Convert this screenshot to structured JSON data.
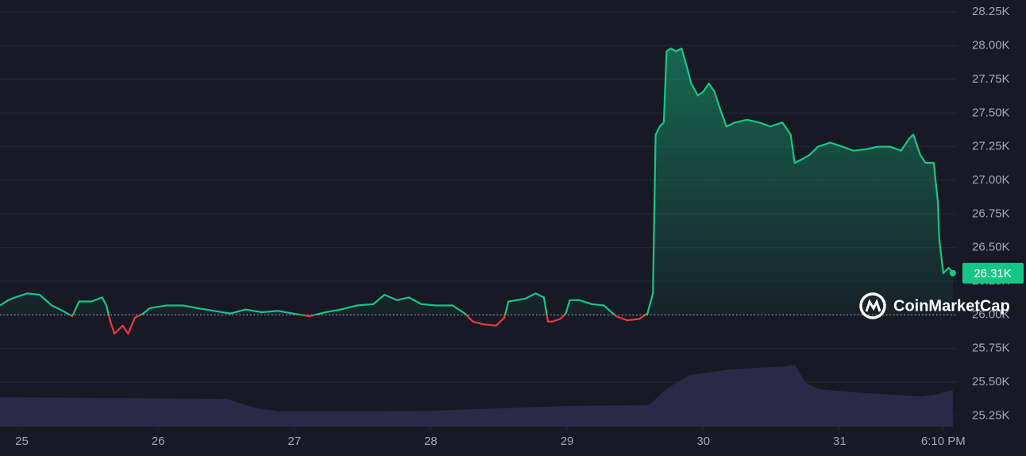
{
  "chart_data": {
    "type": "line",
    "x": [
      24.84,
      24.9,
      24.95,
      25.04,
      25.13,
      25.22,
      25.3,
      25.37,
      25.42,
      25.51,
      25.59,
      25.62,
      25.65,
      25.68,
      25.74,
      25.78,
      25.83,
      25.89,
      25.94,
      26.06,
      26.18,
      26.29,
      26.41,
      26.53,
      26.64,
      26.76,
      26.88,
      26.99,
      27.11,
      27.23,
      27.34,
      27.46,
      27.58,
      27.66,
      27.75,
      27.84,
      27.93,
      28.04,
      28.16,
      28.25,
      28.31,
      28.39,
      28.48,
      28.54,
      28.57,
      28.69,
      28.77,
      28.83,
      28.86,
      28.89,
      28.95,
      28.99,
      29.02,
      29.09,
      29.18,
      29.27,
      29.36,
      29.44,
      29.53,
      29.59,
      29.63,
      29.65,
      29.68,
      29.71,
      29.73,
      29.76,
      29.8,
      29.84,
      29.88,
      29.91,
      29.96,
      30.0,
      30.04,
      30.08,
      30.13,
      30.17,
      30.23,
      30.32,
      30.41,
      30.49,
      30.58,
      30.64,
      30.67,
      30.73,
      30.78,
      30.84,
      30.93,
      31.02,
      31.1,
      31.19,
      31.28,
      31.37,
      31.45,
      31.51,
      31.54,
      31.59,
      31.63,
      31.69,
      31.72,
      31.73,
      31.76,
      31.8,
      31.83
    ],
    "series": [
      {
        "color": "#16c784",
        "down_color": "#ea3943",
        "values": [
          26.07,
          26.11,
          26.13,
          26.16,
          26.15,
          26.07,
          26.03,
          25.99,
          26.1,
          26.1,
          26.13,
          26.07,
          25.95,
          25.86,
          25.92,
          25.86,
          25.98,
          26.01,
          26.05,
          26.07,
          26.07,
          26.05,
          26.03,
          26.01,
          26.04,
          26.02,
          26.03,
          26.01,
          25.99,
          26.02,
          26.04,
          26.07,
          26.08,
          26.15,
          26.11,
          26.13,
          26.08,
          26.07,
          26.07,
          26.01,
          25.95,
          25.93,
          25.92,
          25.98,
          26.1,
          26.12,
          26.16,
          26.13,
          25.95,
          25.95,
          25.97,
          26.01,
          26.11,
          26.11,
          26.08,
          26.07,
          25.99,
          25.96,
          25.97,
          26.01,
          26.16,
          27.34,
          27.4,
          27.43,
          27.96,
          27.98,
          27.96,
          27.98,
          27.84,
          27.72,
          27.63,
          27.66,
          27.72,
          27.66,
          27.51,
          27.4,
          27.43,
          27.45,
          27.43,
          27.4,
          27.43,
          27.34,
          27.13,
          27.16,
          27.19,
          27.25,
          27.28,
          27.25,
          27.22,
          27.23,
          27.25,
          27.25,
          27.22,
          27.31,
          27.34,
          27.19,
          27.13,
          27.13,
          26.84,
          26.57,
          26.31,
          26.35,
          26.31
        ]
      }
    ],
    "baseline": 26.0,
    "current": {
      "value": 26.31,
      "label": "26.31K"
    },
    "volume": {
      "x": [
        24.84,
        25.6,
        26.5,
        26.7,
        26.9,
        27.5,
        28.0,
        28.5,
        29.0,
        29.6,
        29.65,
        29.75,
        29.9,
        30.2,
        30.6,
        30.67,
        30.75,
        30.85,
        31.2,
        31.6,
        31.7,
        31.83
      ],
      "values": [
        37,
        36,
        35,
        24,
        19,
        19,
        20,
        23,
        26,
        27,
        35,
        50,
        65,
        72,
        76,
        78,
        55,
        47,
        42,
        38,
        40,
        46
      ],
      "ylim": [
        0,
        100
      ]
    },
    "xlim": [
      24.84,
      31.86
    ],
    "ylim": [
      25.17,
      28.34
    ],
    "xticks": [
      25,
      26,
      27,
      28,
      29,
      30,
      31,
      {
        "value": 31.76,
        "label": "6:10 PM"
      }
    ],
    "yticks": [
      {
        "value": 25.25,
        "label": "25.25K"
      },
      {
        "value": 25.5,
        "label": "25.50K"
      },
      {
        "value": 25.75,
        "label": "25.75K"
      },
      {
        "value": 26.0,
        "label": "26.00K"
      },
      {
        "value": 26.25,
        "label": "26.25K"
      },
      {
        "value": 26.5,
        "label": "26.50K"
      },
      {
        "value": 26.75,
        "label": "26.75K"
      },
      {
        "value": 27.0,
        "label": "27.00K"
      },
      {
        "value": 27.25,
        "label": "27.25K"
      },
      {
        "value": 27.5,
        "label": "27.50K"
      },
      {
        "value": 27.75,
        "label": "27.75K"
      },
      {
        "value": 28.0,
        "label": "28.00K"
      },
      {
        "value": 28.25,
        "label": "28.25K"
      }
    ],
    "grid": true,
    "watermark": "CoinMarketCap"
  }
}
